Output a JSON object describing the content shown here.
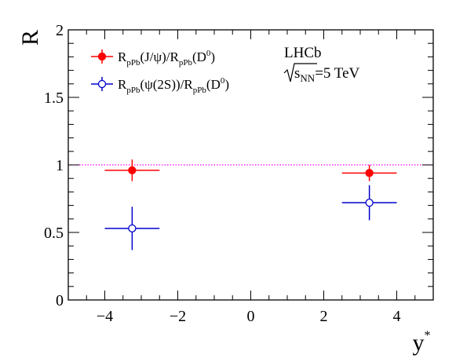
{
  "chart_data": {
    "type": "scatter",
    "xlabel": "y",
    "xlabel_superscript": "*",
    "ylabel": "R",
    "xlim": [
      -5,
      5
    ],
    "ylim": [
      0,
      2
    ],
    "x_ticks": [
      -4,
      -2,
      0,
      2,
      4
    ],
    "x_tick_labels": [
      "−4",
      "−2",
      "0",
      "2",
      "4"
    ],
    "y_ticks": [
      0,
      0.5,
      1,
      1.5,
      2
    ],
    "y_tick_labels": [
      "0",
      "0.5",
      "1",
      "1.5",
      "2"
    ],
    "grid": false,
    "reference_line": {
      "y": 1,
      "style": "dotted",
      "color": "#ff00ff"
    },
    "legend_position": "top-left",
    "experiment_label": "LHCb",
    "energy_label": {
      "sqrt": "s",
      "sub": "NN",
      "rest": "=5 TeV"
    },
    "series": [
      {
        "legend_parts": [
          {
            "t": "R",
            "s": "n"
          },
          {
            "t": "pPb",
            "s": "sub"
          },
          {
            "t": "(J/ψ)/R",
            "s": "n"
          },
          {
            "t": "pPb",
            "s": "sub"
          },
          {
            "t": "(D",
            "s": "n"
          },
          {
            "t": "0",
            "s": "sup"
          },
          {
            "t": ")",
            "s": "n"
          }
        ],
        "color": "#ff0000",
        "marker": "filled-circle",
        "points": [
          {
            "x": -3.25,
            "y": 0.96,
            "xerr": 0.75,
            "yerr": 0.08
          },
          {
            "x": 3.25,
            "y": 0.94,
            "xerr": 0.75,
            "yerr": 0.06
          }
        ]
      },
      {
        "legend_parts": [
          {
            "t": "R",
            "s": "n"
          },
          {
            "t": "pPb",
            "s": "sub"
          },
          {
            "t": "(ψ(2S))/R",
            "s": "n"
          },
          {
            "t": "pPb",
            "s": "sub"
          },
          {
            "t": "(D",
            "s": "n"
          },
          {
            "t": "0",
            "s": "sup"
          },
          {
            "t": ")",
            "s": "n"
          }
        ],
        "color": "#0000cc",
        "marker": "open-circle",
        "points": [
          {
            "x": -3.25,
            "y": 0.53,
            "xerr": 0.75,
            "yerr": 0.16
          },
          {
            "x": 3.25,
            "y": 0.72,
            "xerr": 0.75,
            "yerr": 0.13
          }
        ]
      }
    ]
  }
}
